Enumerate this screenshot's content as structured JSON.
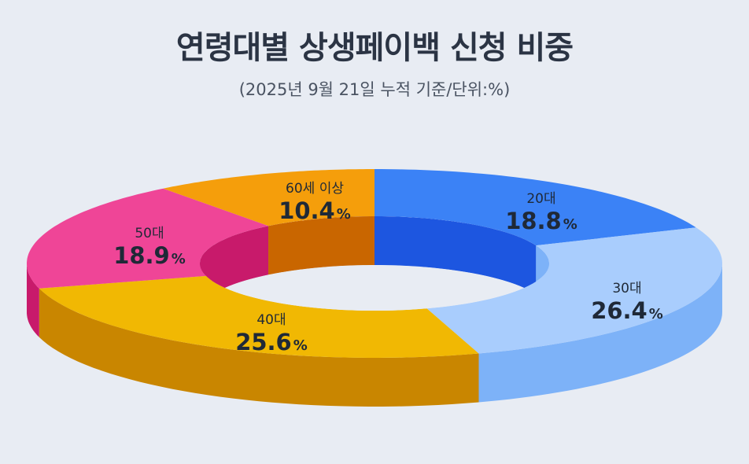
{
  "title": "연령대별 상생페이백 신청 비중",
  "subtitle": "(2025년 9월 21일 누적 기준/단위:%)",
  "colors": {
    "20s_top": "#3b82f6",
    "20s_side": "#1d56e0",
    "30s_top": "#a9cdfd",
    "30s_side": "#7db2f8",
    "40s_top": "#f1b803",
    "40s_side": "#c98600",
    "50s_top": "#ef4597",
    "50s_side": "#c81a6b",
    "60s_top": "#f59e0b",
    "60s_side": "#c96600"
  },
  "chart_data": {
    "type": "pie",
    "style": "3d-donut",
    "title": "연령대별 상생페이백 신청 비중",
    "subtitle": "(2025년 9월 21일 누적 기준/단위:%)",
    "unit": "%",
    "slices": [
      {
        "key": "20s",
        "label": "20대",
        "value": 18.8,
        "display": "18.8"
      },
      {
        "key": "30s",
        "label": "30대",
        "value": 26.4,
        "display": "26.4"
      },
      {
        "key": "40s",
        "label": "40대",
        "value": 25.6,
        "display": "25.6"
      },
      {
        "key": "50s",
        "label": "50대",
        "value": 18.9,
        "display": "18.9"
      },
      {
        "key": "60s",
        "label": "60세 이상",
        "value": 10.4,
        "display": "10.4"
      }
    ]
  }
}
